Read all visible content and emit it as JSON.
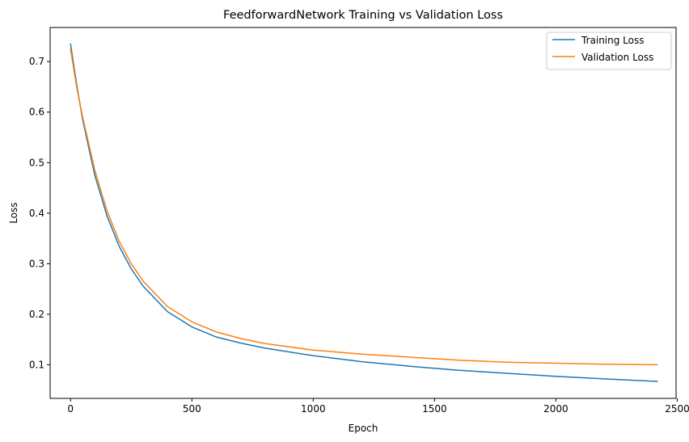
{
  "chart_data": {
    "type": "line",
    "title": "FeedforwardNetwork Training vs Validation Loss",
    "xlabel": "Epoch",
    "ylabel": "Loss",
    "xlim": [
      -84,
      2495
    ],
    "ylim": [
      0.0335,
      0.7675
    ],
    "xticks": [
      0,
      500,
      1000,
      1500,
      2000,
      2500
    ],
    "yticks": [
      0.1,
      0.2,
      0.3,
      0.4,
      0.5,
      0.6,
      0.7
    ],
    "grid": false,
    "legend_position": "top-right",
    "series": [
      {
        "name": "Training Loss",
        "color": "#1f77b4",
        "x": [
          0,
          25,
          50,
          100,
          150,
          200,
          250,
          300,
          400,
          500,
          600,
          700,
          800,
          1000,
          1200,
          1400,
          1600,
          1800,
          2000,
          2200,
          2418
        ],
        "y": [
          0.735,
          0.655,
          0.585,
          0.475,
          0.395,
          0.335,
          0.29,
          0.255,
          0.205,
          0.175,
          0.155,
          0.143,
          0.133,
          0.118,
          0.106,
          0.097,
          0.089,
          0.083,
          0.077,
          0.072,
          0.067
        ]
      },
      {
        "name": "Validation Loss",
        "color": "#ff7f0e",
        "x": [
          0,
          25,
          50,
          100,
          150,
          200,
          250,
          300,
          400,
          500,
          600,
          700,
          800,
          1000,
          1200,
          1400,
          1600,
          1800,
          2000,
          2200,
          2418
        ],
        "y": [
          0.725,
          0.65,
          0.59,
          0.485,
          0.405,
          0.345,
          0.3,
          0.265,
          0.215,
          0.185,
          0.165,
          0.152,
          0.142,
          0.129,
          0.121,
          0.115,
          0.109,
          0.105,
          0.103,
          0.101,
          0.1
        ]
      }
    ]
  }
}
